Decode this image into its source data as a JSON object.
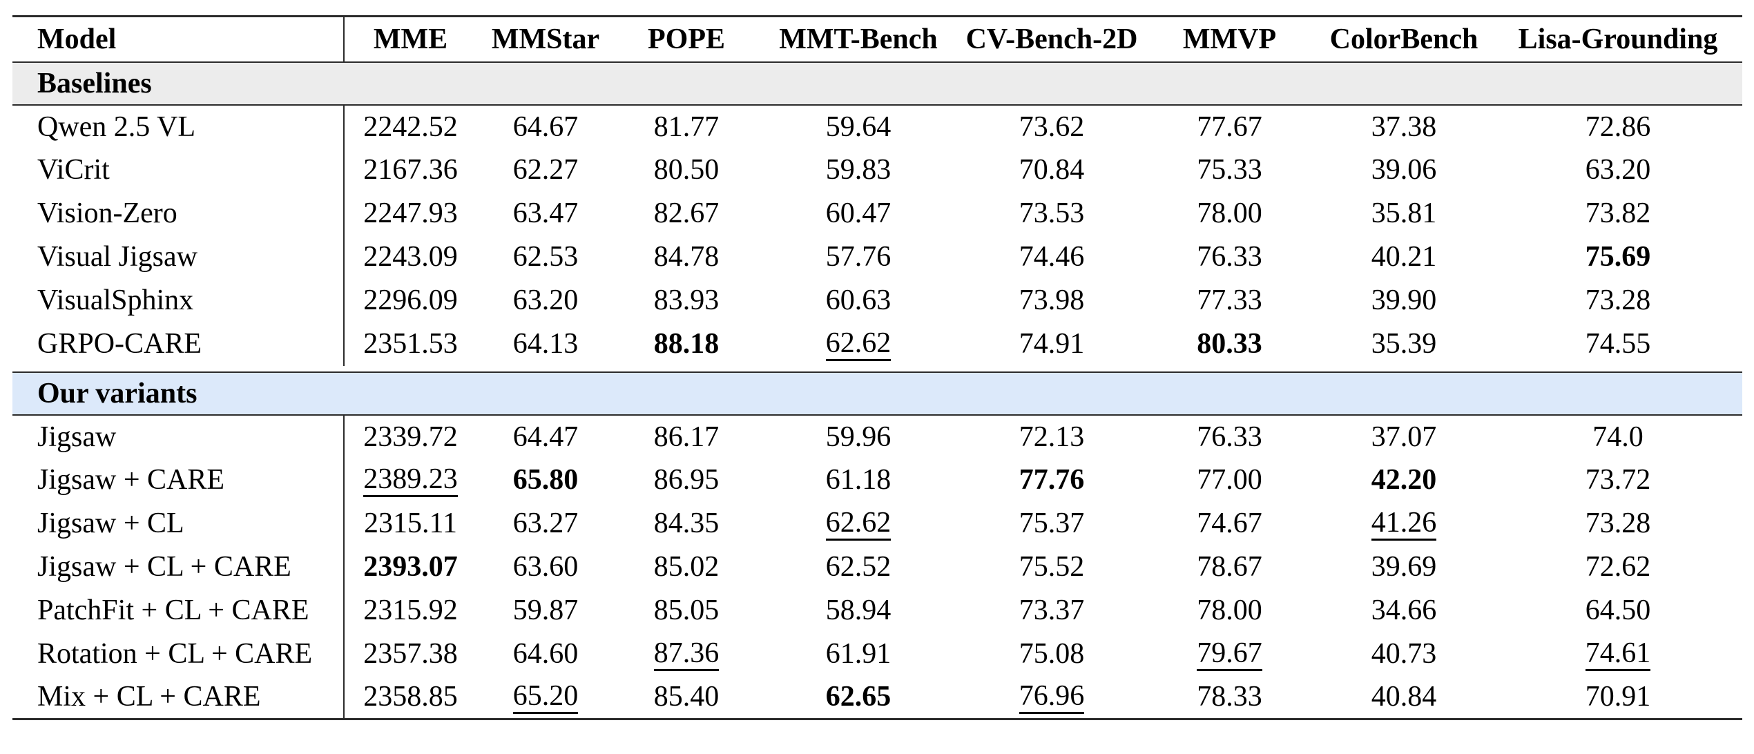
{
  "table": {
    "columns": [
      "Model",
      "MME",
      "MMStar",
      "POPE",
      "MMT-Bench",
      "CV-Bench-2D",
      "MMVP",
      "ColorBench",
      "Lisa-Grounding"
    ],
    "rule_color": "#2b2b2b",
    "sections": [
      {
        "label": "Baselines",
        "band_color": "#ececec",
        "rows": [
          {
            "model": "Qwen 2.5 VL",
            "values": [
              "2242.52",
              "64.67",
              "81.77",
              "59.64",
              "73.62",
              "77.67",
              "37.38",
              "72.86"
            ],
            "styles": [
              "",
              "",
              "",
              "",
              "",
              "",
              "",
              ""
            ]
          },
          {
            "model": "ViCrit",
            "values": [
              "2167.36",
              "62.27",
              "80.50",
              "59.83",
              "70.84",
              "75.33",
              "39.06",
              "63.20"
            ],
            "styles": [
              "",
              "",
              "",
              "",
              "",
              "",
              "",
              ""
            ]
          },
          {
            "model": "Vision-Zero",
            "values": [
              "2247.93",
              "63.47",
              "82.67",
              "60.47",
              "73.53",
              "78.00",
              "35.81",
              "73.82"
            ],
            "styles": [
              "",
              "",
              "",
              "",
              "",
              "",
              "",
              ""
            ]
          },
          {
            "model": "Visual Jigsaw",
            "values": [
              "2243.09",
              "62.53",
              "84.78",
              "57.76",
              "74.46",
              "76.33",
              "40.21",
              "75.69"
            ],
            "styles": [
              "",
              "",
              "",
              "",
              "",
              "",
              "",
              "bold"
            ]
          },
          {
            "model": "VisualSphinx",
            "values": [
              "2296.09",
              "63.20",
              "83.93",
              "60.63",
              "73.98",
              "77.33",
              "39.90",
              "73.28"
            ],
            "styles": [
              "",
              "",
              "",
              "",
              "",
              "",
              "",
              ""
            ]
          },
          {
            "model": "GRPO-CARE",
            "values": [
              "2351.53",
              "64.13",
              "88.18",
              "62.62",
              "74.91",
              "80.33",
              "35.39",
              "74.55"
            ],
            "styles": [
              "",
              "",
              "bold",
              "underline",
              "",
              "bold",
              "",
              ""
            ]
          }
        ]
      },
      {
        "label": "Our variants",
        "band_color": "#dce9fa",
        "rows": [
          {
            "model": "Jigsaw",
            "values": [
              "2339.72",
              "64.47",
              "86.17",
              "59.96",
              "72.13",
              "76.33",
              "37.07",
              "74.0"
            ],
            "styles": [
              "",
              "",
              "",
              "",
              "",
              "",
              "",
              ""
            ]
          },
          {
            "model": "Jigsaw + CARE",
            "values": [
              "2389.23",
              "65.80",
              "86.95",
              "61.18",
              "77.76",
              "77.00",
              "42.20",
              "73.72"
            ],
            "styles": [
              "underline",
              "bold",
              "",
              "",
              "bold",
              "",
              "bold",
              ""
            ]
          },
          {
            "model": "Jigsaw + CL",
            "values": [
              "2315.11",
              "63.27",
              "84.35",
              "62.62",
              "75.37",
              "74.67",
              "41.26",
              "73.28"
            ],
            "styles": [
              "",
              "",
              "",
              "underline",
              "",
              "",
              "underline",
              ""
            ]
          },
          {
            "model": "Jigsaw + CL + CARE",
            "values": [
              "2393.07",
              "63.60",
              "85.02",
              "62.52",
              "75.52",
              "78.67",
              "39.69",
              "72.62"
            ],
            "styles": [
              "bold",
              "",
              "",
              "",
              "",
              "",
              "",
              ""
            ]
          },
          {
            "model": "PatchFit + CL + CARE",
            "values": [
              "2315.92",
              "59.87",
              "85.05",
              "58.94",
              "73.37",
              "78.00",
              "34.66",
              "64.50"
            ],
            "styles": [
              "",
              "",
              "",
              "",
              "",
              "",
              "",
              ""
            ]
          },
          {
            "model": "Rotation + CL + CARE",
            "values": [
              "2357.38",
              "64.60",
              "87.36",
              "61.91",
              "75.08",
              "79.67",
              "40.73",
              "74.61"
            ],
            "styles": [
              "",
              "",
              "underline",
              "",
              "",
              "underline",
              "",
              "underline"
            ]
          },
          {
            "model": "Mix + CL + CARE",
            "values": [
              "2358.85",
              "65.20",
              "85.40",
              "62.65",
              "76.96",
              "78.33",
              "40.84",
              "70.91"
            ],
            "styles": [
              "",
              "underline",
              "",
              "bold",
              "underline",
              "",
              "",
              ""
            ]
          }
        ]
      }
    ]
  }
}
